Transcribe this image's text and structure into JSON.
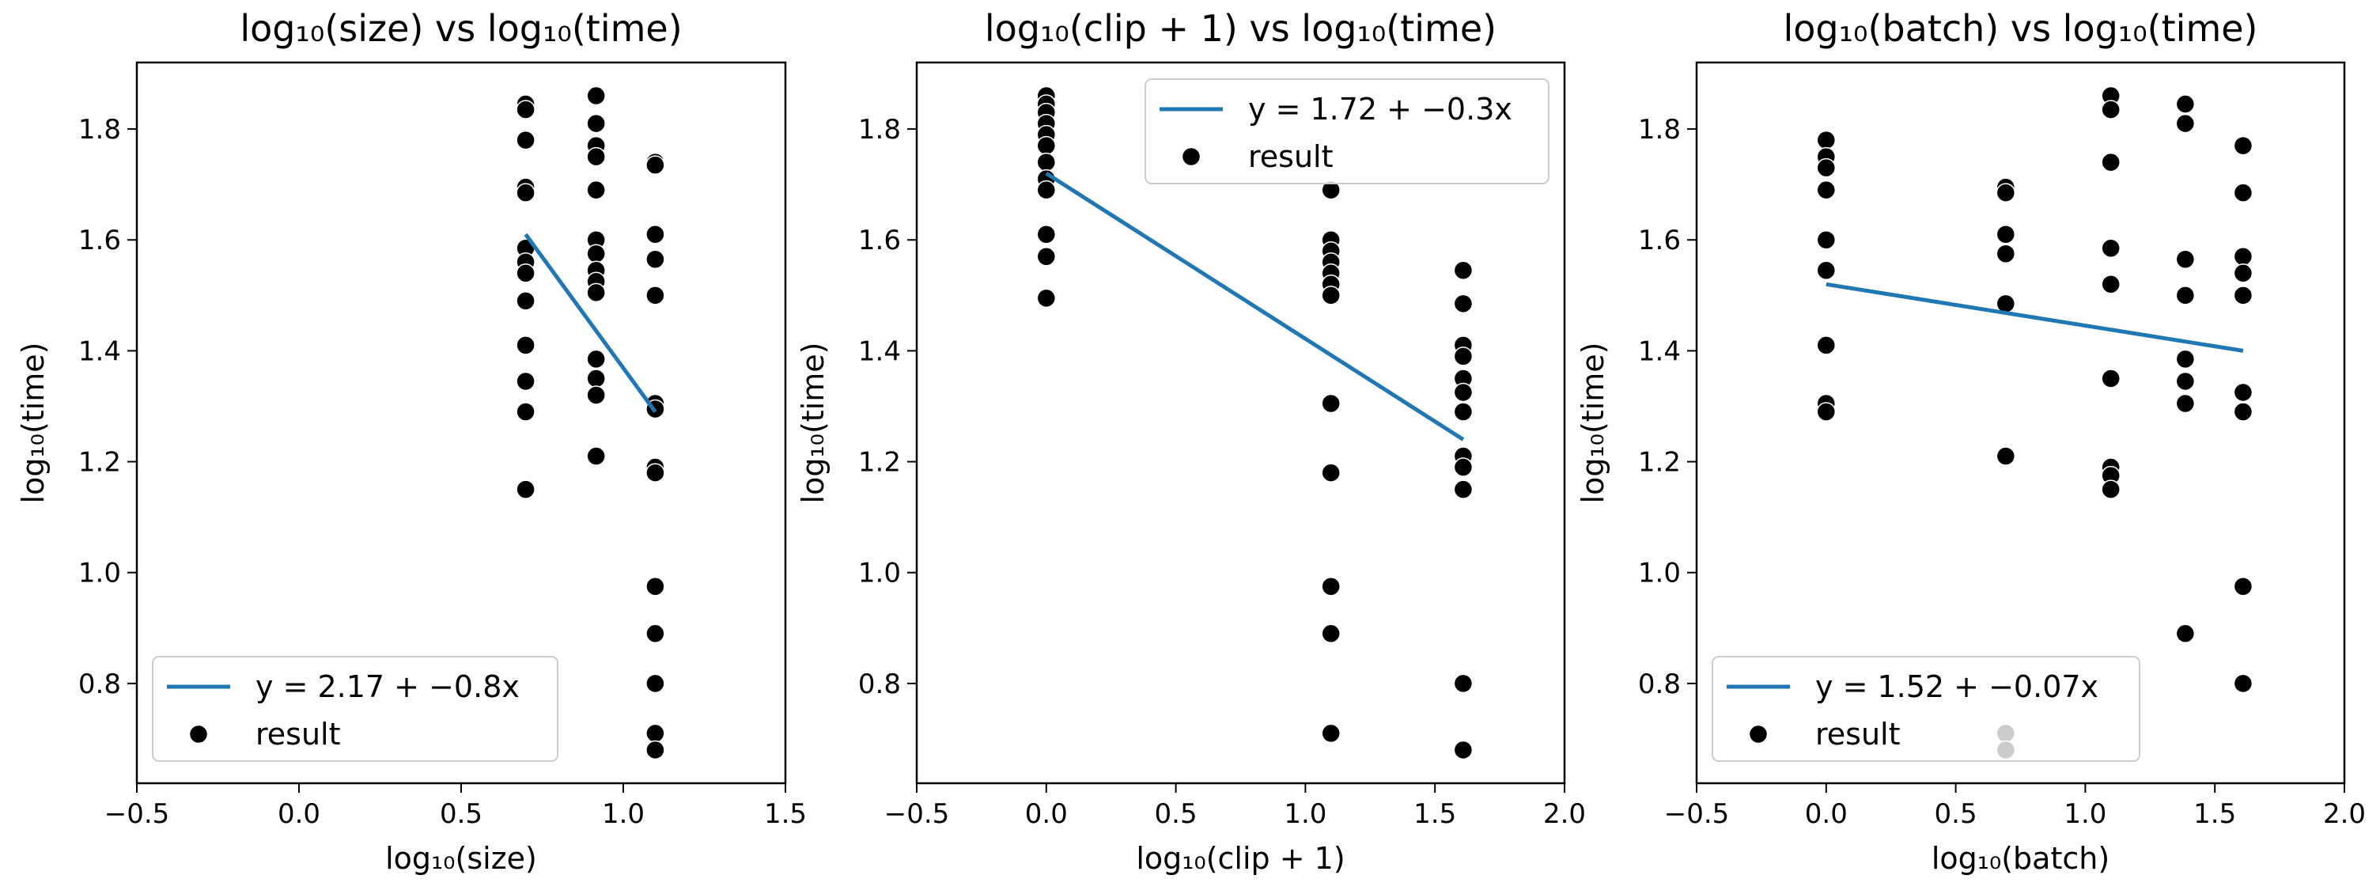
{
  "chart_data": [
    {
      "type": "scatter",
      "title": "log₁₀(size) vs log₁₀(time)",
      "xlabel": "log₁₀(size)",
      "ylabel": "log₁₀(time)",
      "xlim": [
        -0.5,
        1.5
      ],
      "ylim": [
        0.62,
        1.92
      ],
      "xticks": [
        -0.5,
        0.0,
        0.5,
        1.0,
        1.5
      ],
      "xtick_labels": [
        "−0.5",
        "0.0",
        "0.5",
        "1.0",
        "1.5"
      ],
      "yticks": [
        0.8,
        1.0,
        1.2,
        1.4,
        1.6,
        1.8
      ],
      "ytick_labels": [
        "0.8",
        "1.0",
        "1.2",
        "1.4",
        "1.6",
        "1.8"
      ],
      "legend_placement": "lower-left",
      "fit_line": {
        "label": "y = 2.17 + −0.8x",
        "x": [
          0.699,
          1.0986
        ],
        "y": [
          1.61,
          1.29
        ],
        "color": "#1f77b4"
      },
      "series": [
        {
          "name": "result",
          "color": "#000000",
          "points": [
            [
              0.699,
              1.845
            ],
            [
              0.699,
              1.835
            ],
            [
              0.699,
              1.78
            ],
            [
              0.699,
              1.695
            ],
            [
              0.699,
              1.685
            ],
            [
              0.699,
              1.585
            ],
            [
              0.699,
              1.56
            ],
            [
              0.699,
              1.54
            ],
            [
              0.699,
              1.49
            ],
            [
              0.699,
              1.41
            ],
            [
              0.699,
              1.345
            ],
            [
              0.699,
              1.29
            ],
            [
              0.699,
              1.15
            ],
            [
              0.9163,
              1.86
            ],
            [
              0.9163,
              1.81
            ],
            [
              0.9163,
              1.77
            ],
            [
              0.9163,
              1.75
            ],
            [
              0.9163,
              1.69
            ],
            [
              0.9163,
              1.6
            ],
            [
              0.9163,
              1.575
            ],
            [
              0.9163,
              1.545
            ],
            [
              0.9163,
              1.525
            ],
            [
              0.9163,
              1.505
            ],
            [
              0.9163,
              1.385
            ],
            [
              0.9163,
              1.35
            ],
            [
              0.9163,
              1.32
            ],
            [
              0.9163,
              1.21
            ],
            [
              1.0986,
              1.74
            ],
            [
              1.0986,
              1.735
            ],
            [
              1.0986,
              1.61
            ],
            [
              1.0986,
              1.565
            ],
            [
              1.0986,
              1.5
            ],
            [
              1.0986,
              1.305
            ],
            [
              1.0986,
              1.295
            ],
            [
              1.0986,
              1.19
            ],
            [
              1.0986,
              1.18
            ],
            [
              1.0986,
              0.975
            ],
            [
              1.0986,
              0.89
            ],
            [
              1.0986,
              0.8
            ],
            [
              1.0986,
              0.71
            ],
            [
              1.0986,
              0.68
            ]
          ]
        }
      ]
    },
    {
      "type": "scatter",
      "title": "log₁₀(clip + 1) vs log₁₀(time)",
      "xlabel": "log₁₀(clip + 1)",
      "ylabel": "log₁₀(time)",
      "xlim": [
        -0.5,
        2.0
      ],
      "ylim": [
        0.62,
        1.92
      ],
      "xticks": [
        -0.5,
        0.0,
        0.5,
        1.0,
        1.5,
        2.0
      ],
      "xtick_labels": [
        "−0.5",
        "0.0",
        "0.5",
        "1.0",
        "1.5",
        "2.0"
      ],
      "yticks": [
        0.8,
        1.0,
        1.2,
        1.4,
        1.6,
        1.8
      ],
      "ytick_labels": [
        "0.8",
        "1.0",
        "1.2",
        "1.4",
        "1.6",
        "1.8"
      ],
      "legend_placement": "upper-right",
      "fit_line": {
        "label": "y = 1.72 + −0.3x",
        "x": [
          0.0,
          1.609
        ],
        "y": [
          1.72,
          1.24
        ],
        "color": "#1f77b4"
      },
      "series": [
        {
          "name": "result",
          "color": "#000000",
          "points": [
            [
              0.0,
              1.86
            ],
            [
              0.0,
              1.845
            ],
            [
              0.0,
              1.83
            ],
            [
              0.0,
              1.81
            ],
            [
              0.0,
              1.79
            ],
            [
              0.0,
              1.77
            ],
            [
              0.0,
              1.74
            ],
            [
              0.0,
              1.71
            ],
            [
              0.0,
              1.69
            ],
            [
              0.0,
              1.61
            ],
            [
              0.0,
              1.57
            ],
            [
              0.0,
              1.495
            ],
            [
              1.0986,
              1.69
            ],
            [
              1.0986,
              1.6
            ],
            [
              1.0986,
              1.58
            ],
            [
              1.0986,
              1.56
            ],
            [
              1.0986,
              1.54
            ],
            [
              1.0986,
              1.52
            ],
            [
              1.0986,
              1.5
            ],
            [
              1.0986,
              1.305
            ],
            [
              1.0986,
              1.18
            ],
            [
              1.0986,
              0.975
            ],
            [
              1.0986,
              0.89
            ],
            [
              1.0986,
              0.71
            ],
            [
              1.609,
              1.545
            ],
            [
              1.609,
              1.485
            ],
            [
              1.609,
              1.41
            ],
            [
              1.609,
              1.39
            ],
            [
              1.609,
              1.35
            ],
            [
              1.609,
              1.325
            ],
            [
              1.609,
              1.29
            ],
            [
              1.609,
              1.21
            ],
            [
              1.609,
              1.19
            ],
            [
              1.609,
              1.15
            ],
            [
              1.609,
              0.8
            ],
            [
              1.609,
              0.68
            ]
          ]
        }
      ]
    },
    {
      "type": "scatter",
      "title": "log₁₀(batch) vs log₁₀(time)",
      "xlabel": "log₁₀(batch)",
      "ylabel": "log₁₀(time)",
      "xlim": [
        -0.5,
        2.0
      ],
      "ylim": [
        0.62,
        1.92
      ],
      "xticks": [
        -0.5,
        0.0,
        0.5,
        1.0,
        1.5,
        2.0
      ],
      "xtick_labels": [
        "−0.5",
        "0.0",
        "0.5",
        "1.0",
        "1.5",
        "2.0"
      ],
      "yticks": [
        0.8,
        1.0,
        1.2,
        1.4,
        1.6,
        1.8
      ],
      "ytick_labels": [
        "0.8",
        "1.0",
        "1.2",
        "1.4",
        "1.6",
        "1.8"
      ],
      "legend_placement": "lower-left",
      "fit_line": {
        "label": "y = 1.52 + −0.07x",
        "x": [
          0.0,
          1.609
        ],
        "y": [
          1.52,
          1.4
        ],
        "color": "#1f77b4"
      },
      "series": [
        {
          "name": "result",
          "color": "#000000",
          "points": [
            [
              0.0,
              1.78
            ],
            [
              0.0,
              1.75
            ],
            [
              0.0,
              1.73
            ],
            [
              0.0,
              1.69
            ],
            [
              0.0,
              1.6
            ],
            [
              0.0,
              1.545
            ],
            [
              0.0,
              1.41
            ],
            [
              0.0,
              1.305
            ],
            [
              0.0,
              1.29
            ],
            [
              0.693,
              1.695
            ],
            [
              0.693,
              1.685
            ],
            [
              0.693,
              1.61
            ],
            [
              0.693,
              1.575
            ],
            [
              0.693,
              1.485
            ],
            [
              0.693,
              1.21
            ],
            [
              0.693,
              0.71
            ],
            [
              0.693,
              0.68
            ],
            [
              1.0986,
              1.86
            ],
            [
              1.0986,
              1.835
            ],
            [
              1.0986,
              1.74
            ],
            [
              1.0986,
              1.585
            ],
            [
              1.0986,
              1.52
            ],
            [
              1.0986,
              1.35
            ],
            [
              1.0986,
              1.19
            ],
            [
              1.0986,
              1.175
            ],
            [
              1.0986,
              1.15
            ],
            [
              1.386,
              1.845
            ],
            [
              1.386,
              1.81
            ],
            [
              1.386,
              1.565
            ],
            [
              1.386,
              1.5
            ],
            [
              1.386,
              1.385
            ],
            [
              1.386,
              1.345
            ],
            [
              1.386,
              1.305
            ],
            [
              1.386,
              0.89
            ],
            [
              1.609,
              1.77
            ],
            [
              1.609,
              1.685
            ],
            [
              1.609,
              1.57
            ],
            [
              1.609,
              1.54
            ],
            [
              1.609,
              1.5
            ],
            [
              1.609,
              1.325
            ],
            [
              1.609,
              1.29
            ],
            [
              1.609,
              0.975
            ],
            [
              1.609,
              0.8
            ]
          ]
        }
      ]
    }
  ]
}
